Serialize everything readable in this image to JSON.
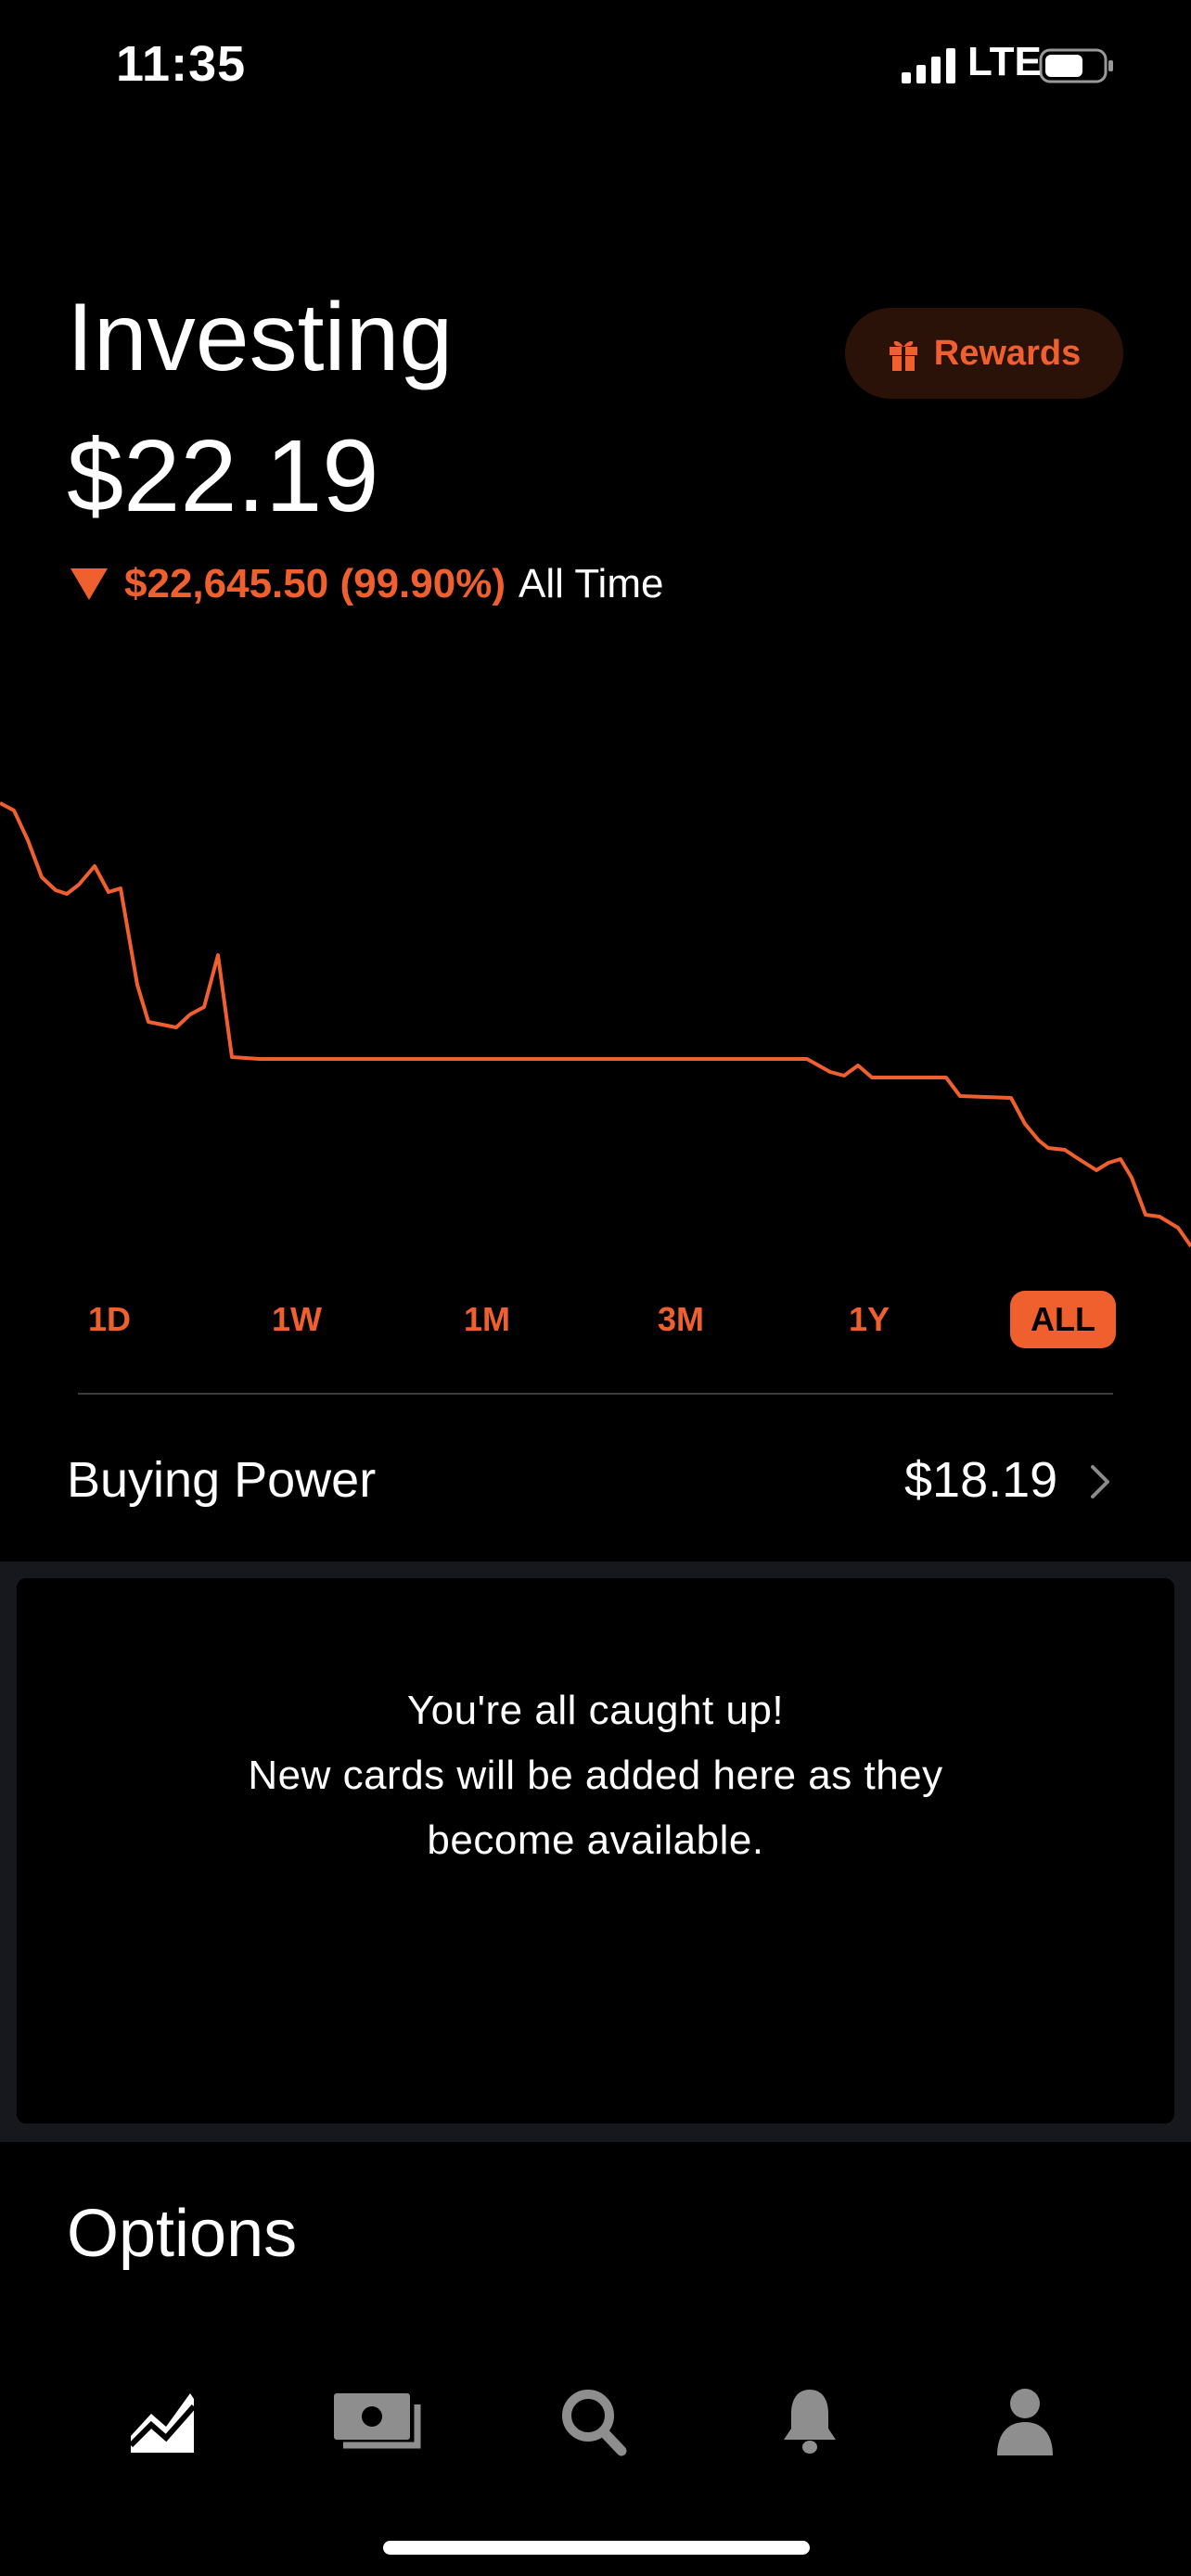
{
  "status_bar": {
    "time": "11:35",
    "network": "LTE"
  },
  "header": {
    "title": "Investing",
    "balance": "$22.19",
    "change_value": "$22,645.50 (99.90%)",
    "change_period": "All Time",
    "rewards_label": "Rewards"
  },
  "colors": {
    "accent": "#f0602f",
    "background": "#000000"
  },
  "timeframes": [
    "1D",
    "1W",
    "1M",
    "3M",
    "1Y",
    "ALL"
  ],
  "selected_timeframe": "ALL",
  "buying_power": {
    "label": "Buying Power",
    "value": "$18.19"
  },
  "card": {
    "line1": "You're all caught up!",
    "line2": "New cards will be added here as they",
    "line3": "become available."
  },
  "options_title": "Options",
  "nav": [
    {
      "name": "investing",
      "icon": "chart-icon",
      "active": true
    },
    {
      "name": "cash",
      "icon": "cash-icon",
      "active": false
    },
    {
      "name": "search",
      "icon": "search-icon",
      "active": false
    },
    {
      "name": "notifications",
      "icon": "bell-icon",
      "active": false
    },
    {
      "name": "account",
      "icon": "person-icon",
      "active": false
    }
  ]
}
